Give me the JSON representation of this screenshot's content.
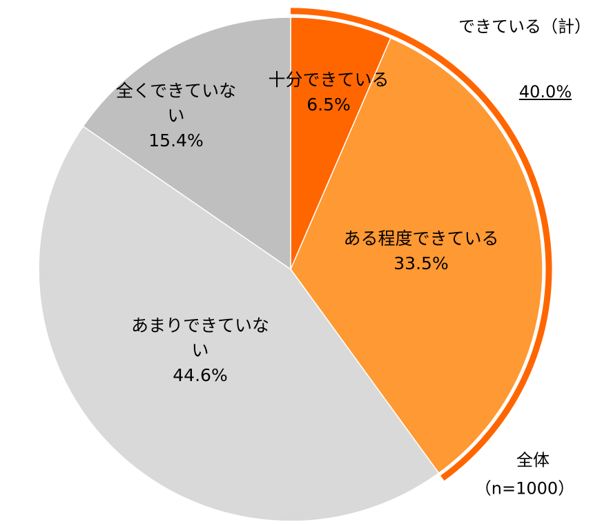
{
  "chart_data": {
    "type": "pie",
    "categories": [
      "十分できている",
      "ある程度できている",
      "あまりできていない",
      "全くできていない"
    ],
    "values": [
      6.5,
      33.5,
      44.6,
      15.4
    ],
    "value_labels": [
      "6.5%",
      "33.5%",
      "44.6%",
      "15.4%"
    ],
    "colors": [
      "#ff6600",
      "#ff9933",
      "#d9d9d9",
      "#bfbfbf"
    ],
    "group": {
      "label": "できている（計）",
      "value": 40.0,
      "value_label": "40.0%",
      "color": "#ff6600"
    },
    "center_label": "全体",
    "sample": "（n=1000）"
  }
}
